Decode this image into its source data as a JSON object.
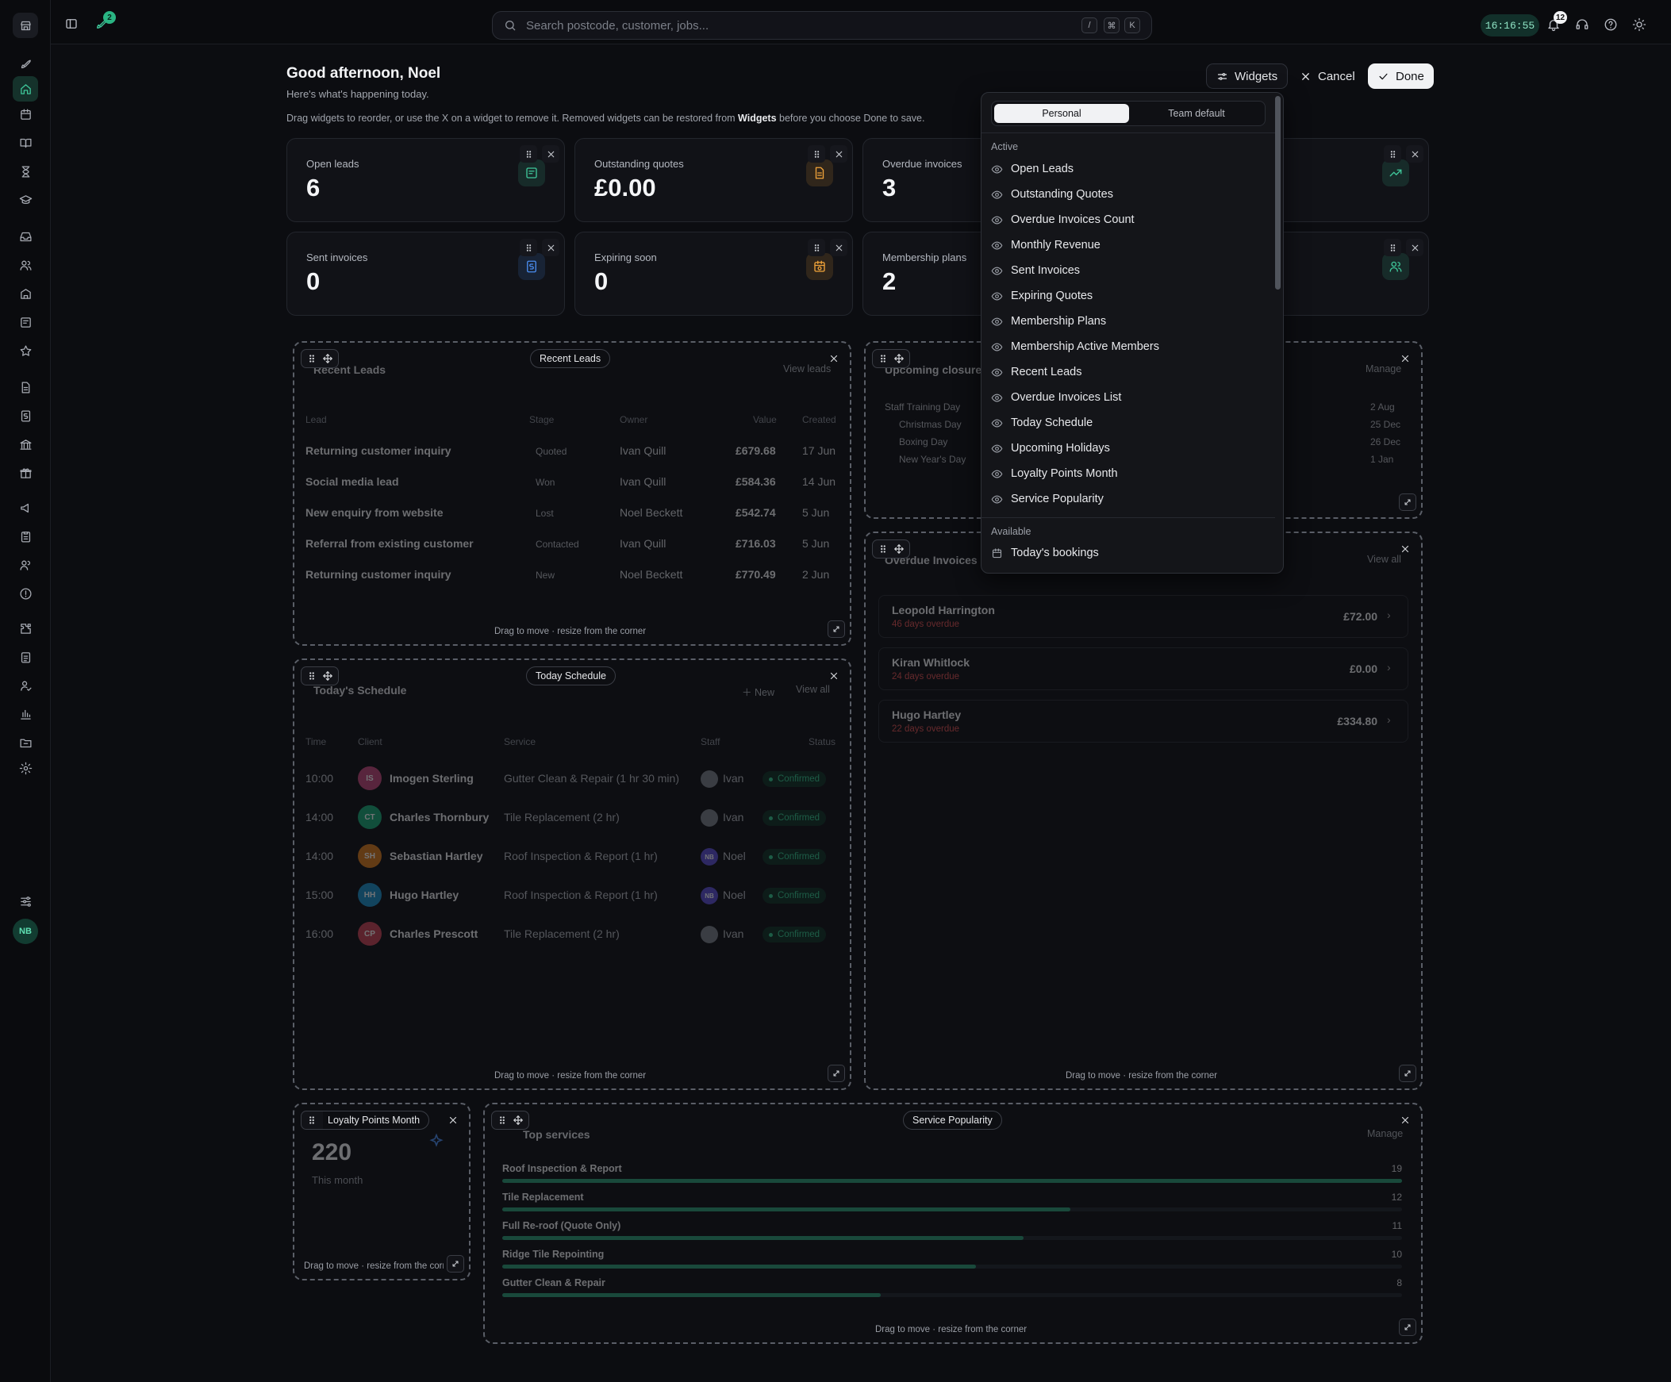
{
  "topbar": {
    "search_placeholder": "Search postcode, customer, jobs...",
    "kbd": [
      "/",
      "⌘",
      "K"
    ],
    "clock": "16:16:55",
    "rocket_badge": "2",
    "bell_badge": "12"
  },
  "sidebar": {
    "user_initials": "NB",
    "colors": {
      "active": "#3fc79a"
    }
  },
  "header": {
    "greeting": "Good afternoon, Noel",
    "subtitle": "Here's what's happening today.",
    "hint_before": "Drag widgets to reorder, or use the X on a widget to remove it. Removed widgets can be restored from ",
    "hint_bold": "Widgets",
    "hint_after": " before you choose Done to save.",
    "widgets_button": "Widgets",
    "cancel_button": "Cancel",
    "done_button": "Done"
  },
  "stats": [
    {
      "label": "Open leads",
      "value": "6",
      "icon": "form-icon",
      "color": "#3fc79a"
    },
    {
      "label": "Outstanding quotes",
      "value": "£0.00",
      "icon": "document-icon",
      "color": "#f0a33a"
    },
    {
      "label": "Overdue invoices",
      "value": "3",
      "icon": "alert-icon",
      "color": "#e05a5a"
    },
    {
      "label": "",
      "value": "",
      "icon": "trend-up-icon",
      "color": "#3fc79a"
    },
    {
      "label": "Sent invoices",
      "value": "0",
      "icon": "invoice-icon",
      "color": "#4a8df0"
    },
    {
      "label": "Expiring soon",
      "value": "0",
      "icon": "calendar-clock-icon",
      "color": "#f0a33a"
    },
    {
      "label": "Membership plans",
      "value": "2",
      "icon": "membership-icon",
      "color": "#3fc79a"
    },
    {
      "label": "",
      "value": "",
      "icon": "users-icon",
      "color": "#3fc79a"
    }
  ],
  "recent_leads": {
    "pill": "Recent Leads",
    "title": "Recent Leads",
    "link": "View leads",
    "headers": [
      "Lead",
      "Stage",
      "Owner",
      "Value",
      "Created"
    ],
    "rows": [
      {
        "lead": "Returning customer inquiry",
        "stage": "Quoted",
        "owner": "Ivan Quill",
        "value": "£679.68",
        "created": "17 Jun"
      },
      {
        "lead": "Social media lead",
        "stage": "Won",
        "owner": "Ivan Quill",
        "value": "£584.36",
        "created": "14 Jun"
      },
      {
        "lead": "New enquiry from website",
        "stage": "Lost",
        "owner": "Noel Beckett",
        "value": "£542.74",
        "created": "5 Jun"
      },
      {
        "lead": "Referral from existing customer",
        "stage": "Contacted",
        "owner": "Ivan Quill",
        "value": "£716.03",
        "created": "5 Jun"
      },
      {
        "lead": "Returning customer inquiry",
        "stage": "New",
        "owner": "Noel Beckett",
        "value": "£770.49",
        "created": "2 Jun"
      }
    ],
    "hint": "Drag to move · resize from the corner"
  },
  "holidays": {
    "title": "Upcoming closures",
    "link": "Manage",
    "rows": [
      {
        "name": "Staff Training Day",
        "date": "2 Aug"
      },
      {
        "name": "Christmas Day",
        "date": "25 Dec"
      },
      {
        "name": "Boxing Day",
        "date": "26 Dec"
      },
      {
        "name": "New Year's Day",
        "date": "1 Jan"
      }
    ]
  },
  "overdue_invoices": {
    "title": "Overdue Invoices",
    "link": "View all",
    "rows": [
      {
        "name": "Leopold Harrington",
        "overdue": "46 days overdue",
        "amount": "£72.00"
      },
      {
        "name": "Kiran Whitlock",
        "overdue": "24 days overdue",
        "amount": "£0.00"
      },
      {
        "name": "Hugo Hartley",
        "overdue": "22 days overdue",
        "amount": "£334.80"
      }
    ],
    "hint": "Drag to move · resize from the corner"
  },
  "schedule": {
    "pill": "Today Schedule",
    "title": "Today's Schedule",
    "new_label": "New",
    "link": "View all",
    "headers": [
      "Time",
      "Client",
      "Service",
      "Staff",
      "Status"
    ],
    "rows": [
      {
        "time": "10:00",
        "initials": "IS",
        "color": "#c2477a",
        "client": "Imogen Sterling",
        "service": "Gutter Clean & Repair (1 hr 30 min)",
        "staff_initials": "",
        "staff": "Ivan",
        "status": "Confirmed"
      },
      {
        "time": "14:00",
        "initials": "CT",
        "color": "#1aa775",
        "client": "Charles Thornbury",
        "service": "Tile Replacement (2 hr)",
        "staff_initials": "",
        "staff": "Ivan",
        "status": "Confirmed"
      },
      {
        "time": "14:00",
        "initials": "SH",
        "color": "#d97a1c",
        "client": "Sebastian Hartley",
        "service": "Roof Inspection & Report (1 hr)",
        "staff_initials": "NB",
        "staff": "Noel",
        "status": "Confirmed"
      },
      {
        "time": "15:00",
        "initials": "HH",
        "color": "#1c8fc9",
        "client": "Hugo Hartley",
        "service": "Roof Inspection & Report (1 hr)",
        "staff_initials": "NB",
        "staff": "Noel",
        "status": "Confirmed"
      },
      {
        "time": "16:00",
        "initials": "CP",
        "color": "#c94253",
        "client": "Charles Prescott",
        "service": "Tile Replacement (2 hr)",
        "staff_initials": "",
        "staff": "Ivan",
        "status": "Confirmed"
      }
    ],
    "hint": "Drag to move · resize from the corner"
  },
  "loyalty": {
    "pill": "Loyalty Points Month",
    "value": "220",
    "caption": "This month",
    "hint": "Drag to move · resize from the corner"
  },
  "popularity": {
    "pill": "Service Popularity",
    "title": "Top services",
    "link": "Manage",
    "max": 19,
    "items": [
      {
        "name": "Roof Inspection & Report",
        "count": 19
      },
      {
        "name": "Tile Replacement",
        "count": 12
      },
      {
        "name": "Full Re-roof (Quote Only)",
        "count": 11
      },
      {
        "name": "Ridge Tile Repointing",
        "count": 10
      },
      {
        "name": "Gutter Clean & Repair",
        "count": 8
      }
    ],
    "hint": "Drag to move · resize from the corner"
  },
  "dropdown": {
    "tab_personal": "Personal",
    "tab_team": "Team default",
    "active_label": "Active",
    "active": [
      "Open Leads",
      "Outstanding Quotes",
      "Overdue Invoices Count",
      "Monthly Revenue",
      "Sent Invoices",
      "Expiring Quotes",
      "Membership Plans",
      "Membership Active Members",
      "Recent Leads",
      "Overdue Invoices List",
      "Today Schedule",
      "Upcoming Holidays",
      "Loyalty Points Month",
      "Service Popularity"
    ],
    "available_label": "Available",
    "available": [
      "Today's bookings"
    ]
  }
}
